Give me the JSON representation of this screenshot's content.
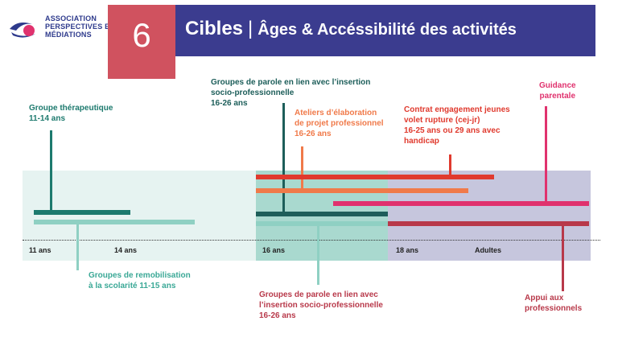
{
  "header": {
    "logo_lines": [
      "Association",
      "Perspectives et",
      "Médiations"
    ],
    "section_number": "6",
    "title_main": "Cibles",
    "title_sep": "|",
    "title_sub": "Âges & Accéssibilité des activités"
  },
  "axis": {
    "ticks": [
      "11 ans",
      "14 ans",
      "16 ans",
      "18 ans",
      "Adultes"
    ]
  },
  "labels": {
    "groupe_therapeutique": "Groupe thérapeutique\n11-14 ans",
    "remobilisation": "Groupes de remobilisation\nà la scolarité 11-15 ans",
    "parole_top": "Groupes de parole en lien avec l’insertion\nsocio-professionnelle\n16-26 ans",
    "ateliers": "Ateliers d’élaboration\nde projet professionnel\n16-26 ans",
    "cej": "Contrat engagement jeunes\nvolet rupture (cej-jr)\n16-25 ans ou 29 ans avec\nhandicap",
    "guidance": "Guidance\nparentale",
    "parole_bottom": "Groupes de parole en lien avec\nl’insertion socio-professionnelle\n16-26 ans",
    "appui": "Appui aux\nprofessionnels"
  },
  "colors": {
    "teal_dark": "#1d7a6e",
    "teal_light": "#8fd0c3",
    "orange": "#f07a4a",
    "red": "#e03a2e",
    "pink": "#e0326e",
    "crimson": "#b8394a",
    "navy": "#3b3c8f"
  }
}
